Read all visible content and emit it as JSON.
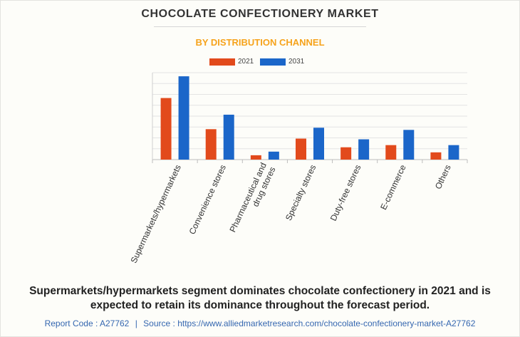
{
  "title": "CHOCOLATE CONFECTIONERY MARKET",
  "subtitle": "BY DISTRIBUTION CHANNEL",
  "colors": {
    "title": "#333333",
    "subtitle": "#f6a31c",
    "series_2021": "#e24a1c",
    "series_2031": "#1b66c9",
    "footer": "#3567b0"
  },
  "chart_data": {
    "type": "bar",
    "categories": [
      "Supermarkets/hypermarkets",
      "Convenience stores",
      "Pharmaceutical and drug stores",
      "Specialty stores",
      "Duty-free stores",
      "E-commerce",
      "Others"
    ],
    "category_lines": [
      [
        "Supermarkets/hypermarkets"
      ],
      [
        "Convenience stores"
      ],
      [
        "Pharmaceutical and",
        "drug stores"
      ],
      [
        "Specialty stores"
      ],
      [
        "Duty-free stores"
      ],
      [
        "E-commerce"
      ],
      [
        "Others"
      ]
    ],
    "series": [
      {
        "name": "2021",
        "values": [
          85,
          42,
          6,
          29,
          17,
          20,
          10
        ],
        "color": "#e24a1c"
      },
      {
        "name": "2031",
        "values": [
          115,
          62,
          11,
          44,
          28,
          41,
          20
        ],
        "color": "#1b66c9"
      }
    ],
    "ylim": [
      0,
      120
    ],
    "gridlines": 9,
    "grid": true,
    "legend": "top-center",
    "y_tick_labels_shown": false
  },
  "caption": "Supermarkets/hypermarkets segment dominates chocolate confectionery in 2021 and is expected to retain its dominance throughout the forecast period.",
  "footer": {
    "report_label": "Report Code : A27762",
    "separator": "|",
    "source_label": "Source : https://www.alliedmarketresearch.com/chocolate-confectionery-market-A27762"
  }
}
